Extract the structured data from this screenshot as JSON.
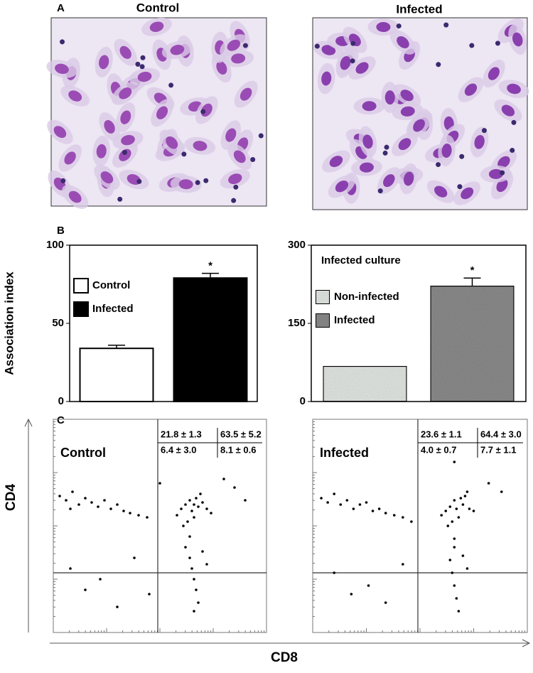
{
  "panel_labels": [
    "A",
    "B",
    "C"
  ],
  "panel_a": {
    "images": [
      {
        "title": "Control"
      },
      {
        "title": "Infected"
      }
    ]
  },
  "shared_axes": {
    "ylabel": "CD4",
    "xlabel": "CD8"
  },
  "chart_data": [
    {
      "type": "bar",
      "ylabel": "Association index",
      "categories": [
        null
      ],
      "series": [
        {
          "name": "Control",
          "color": "#ffffff",
          "values": [
            34
          ],
          "errors": [
            2
          ]
        },
        {
          "name": "Infected",
          "color": "#000000",
          "values": [
            79
          ],
          "errors": [
            3
          ]
        }
      ],
      "annotation": "*",
      "ylim": [
        0,
        100
      ],
      "yticks": [
        0,
        50,
        100
      ]
    },
    {
      "type": "bar",
      "title": "Infected culture",
      "categories": [
        null
      ],
      "pattern": "noise",
      "series": [
        {
          "name": "Non-infected",
          "color": "#e4e8e4",
          "values": [
            68
          ],
          "errors": [
            0
          ]
        },
        {
          "name": "Infected",
          "color": "#8c8c8c",
          "values": [
            222
          ],
          "errors": [
            15
          ]
        }
      ],
      "annotation": "*",
      "ylim": [
        0,
        300
      ],
      "yticks": [
        0,
        150,
        300
      ]
    },
    {
      "type": "scatter",
      "title": "Control",
      "xlim": [
        0,
        100
      ],
      "ylim": [
        0,
        100
      ],
      "gate_x": 49,
      "gate_y": 28,
      "quadrant_labels": [
        "21.8 ± 1.3",
        "63.5 ± 5.2",
        "6.4 ± 3.0",
        "8.1 ± 0.6"
      ],
      "x": [
        3,
        6,
        9,
        12,
        15,
        18,
        21,
        24,
        27,
        30,
        33,
        36,
        40,
        44,
        8,
        58,
        60,
        62,
        64,
        65,
        66,
        67,
        68,
        70,
        72,
        63,
        61,
        69,
        74,
        66,
        62,
        64,
        65,
        66,
        67,
        68,
        64,
        66,
        70,
        72,
        8,
        15,
        22,
        30,
        38,
        45,
        80,
        85,
        50,
        90
      ],
      "y": [
        64,
        62,
        66,
        60,
        63,
        61,
        59,
        62,
        58,
        60,
        57,
        56,
        55,
        54,
        58,
        55,
        58,
        60,
        62,
        57,
        54,
        63,
        59,
        61,
        58,
        52,
        50,
        65,
        56,
        60,
        40,
        35,
        30,
        25,
        20,
        14,
        45,
        10,
        38,
        32,
        30,
        20,
        25,
        12,
        35,
        18,
        72,
        68,
        70,
        62
      ]
    },
    {
      "type": "scatter",
      "title": "Infected",
      "xlim": [
        0,
        100
      ],
      "ylim": [
        0,
        100
      ],
      "gate_x": 49,
      "gate_y": 28,
      "quadrant_labels": [
        "23.6 ± 1.1",
        "64.4 ± 3.0",
        "4.0 ± 0.7",
        "7.7 ± 1.1"
      ],
      "x": [
        4,
        7,
        10,
        13,
        16,
        19,
        22,
        25,
        28,
        31,
        34,
        38,
        42,
        46,
        60,
        62,
        64,
        66,
        67,
        68,
        69,
        70,
        71,
        73,
        65,
        63,
        72,
        75,
        66,
        64,
        65,
        66,
        67,
        68,
        66,
        70,
        72,
        10,
        18,
        26,
        34,
        42,
        82,
        88,
        66
      ],
      "y": [
        63,
        61,
        65,
        60,
        62,
        58,
        60,
        61,
        57,
        58,
        56,
        55,
        54,
        52,
        55,
        57,
        59,
        62,
        58,
        54,
        63,
        60,
        64,
        58,
        52,
        50,
        66,
        57,
        40,
        34,
        28,
        22,
        16,
        10,
        44,
        36,
        30,
        28,
        18,
        22,
        14,
        32,
        70,
        66,
        80
      ]
    }
  ]
}
